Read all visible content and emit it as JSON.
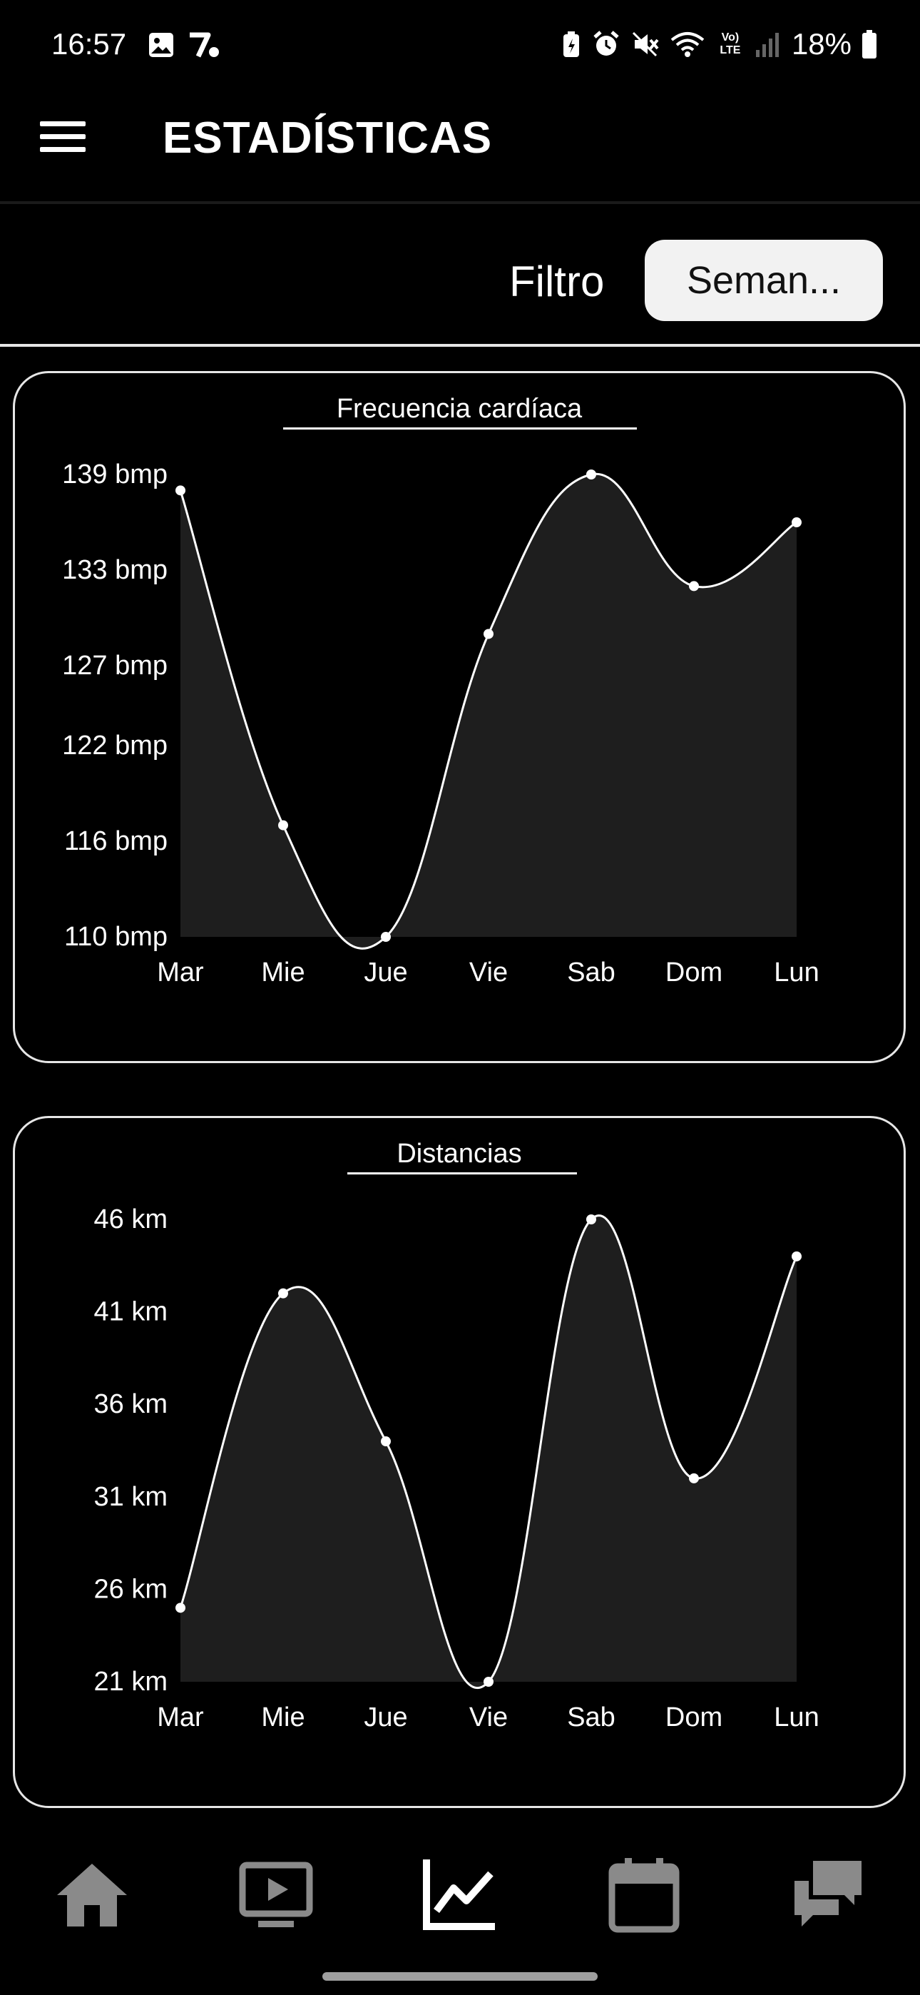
{
  "status_bar": {
    "time": "16:57",
    "network": "Vo) LTE",
    "battery": "18%"
  },
  "header": {
    "title": "ESTADÍSTICAS",
    "menu_icon": "hamburger-menu-icon"
  },
  "filter": {
    "label": "Filtro",
    "selected": "Seman..."
  },
  "chart_data": [
    {
      "type": "area",
      "title": "Frecuencia cardíaca",
      "categories": [
        "Mar",
        "Mie",
        "Jue",
        "Vie",
        "Sab",
        "Dom",
        "Lun"
      ],
      "values": [
        138,
        117,
        110,
        129,
        139,
        132,
        136
      ],
      "ytick_labels": [
        "139 bmp",
        "133 bmp",
        "127 bmp",
        "122 bmp",
        "116 bmp",
        "110 bmp"
      ],
      "ytick_values": [
        139,
        133,
        127,
        122,
        116,
        110
      ],
      "ylim": [
        110,
        139
      ],
      "line_color": "#ffffff",
      "fill_color": "#1e1e1e"
    },
    {
      "type": "area",
      "title": "Distancias",
      "categories": [
        "Mar",
        "Mie",
        "Jue",
        "Vie",
        "Sab",
        "Dom",
        "Lun"
      ],
      "values": [
        25,
        42,
        34,
        21,
        46,
        32,
        44
      ],
      "ytick_labels": [
        "46 km",
        "41 km",
        "36 km",
        "31 km",
        "26 km",
        "21 km"
      ],
      "ytick_values": [
        46,
        41,
        36,
        31,
        26,
        21
      ],
      "ylim": [
        21,
        46
      ],
      "line_color": "#ffffff",
      "fill_color": "#1e1e1e"
    }
  ],
  "bottom_nav": {
    "items": [
      {
        "icon": "home-icon",
        "active": false
      },
      {
        "icon": "video-player-icon",
        "active": false
      },
      {
        "icon": "stats-chart-icon",
        "active": true
      },
      {
        "icon": "calendar-icon",
        "active": false
      },
      {
        "icon": "chat-icon",
        "active": false
      }
    ]
  },
  "colors": {
    "background": "#000000",
    "foreground": "#ffffff",
    "inactive_icon": "#8a8a8a",
    "filter_button_bg": "#f2f2f2"
  }
}
